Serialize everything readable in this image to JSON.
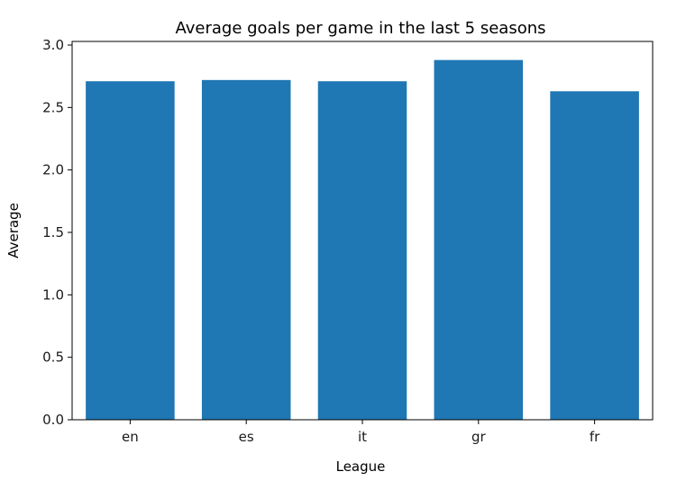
{
  "chart_data": {
    "type": "bar",
    "title": "Average goals per game in the last 5 seasons",
    "xlabel": "League",
    "ylabel": "Average",
    "categories": [
      "en",
      "es",
      "it",
      "gr",
      "fr"
    ],
    "values": [
      2.71,
      2.72,
      2.71,
      2.88,
      2.63
    ],
    "ylim": [
      0,
      3.0
    ],
    "yticks": [
      "0.0",
      "0.5",
      "1.0",
      "1.5",
      "2.0",
      "2.5",
      "3.0"
    ],
    "grid": false,
    "bar_color": "#1f77b4"
  }
}
